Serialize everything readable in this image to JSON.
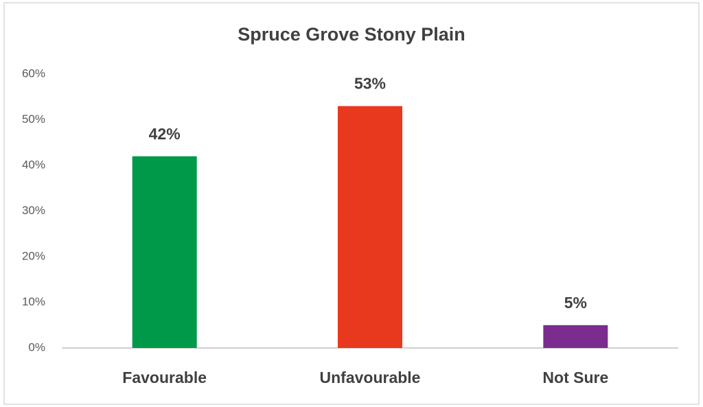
{
  "chart_data": {
    "type": "bar",
    "title": "Spruce Grove Stony Plain",
    "categories": [
      "Favourable",
      "Unfavourable",
      "Not Sure"
    ],
    "values": [
      42,
      53,
      5
    ],
    "value_labels": [
      "42%",
      "53%",
      "5%"
    ],
    "colors": [
      "#00994a",
      "#e8391e",
      "#7b2c8e"
    ],
    "ylim": [
      0,
      60
    ],
    "yticks": [
      {
        "value": 0,
        "label": "0%"
      },
      {
        "value": 10,
        "label": "10%"
      },
      {
        "value": 20,
        "label": "20%"
      },
      {
        "value": 30,
        "label": "30%"
      },
      {
        "value": 40,
        "label": "40%"
      },
      {
        "value": 50,
        "label": "50%"
      },
      {
        "value": 60,
        "label": "60%"
      }
    ],
    "grid": false
  }
}
